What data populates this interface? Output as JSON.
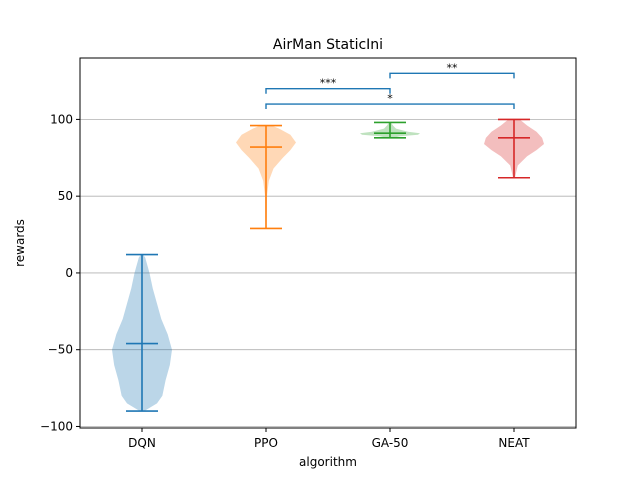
{
  "chart_data": {
    "type": "violin",
    "title": "AirMan StaticIni",
    "xlabel": "algorithm",
    "ylabel": "rewards",
    "ylim": [
      -101,
      140
    ],
    "yticks": [
      -100,
      -50,
      0,
      50,
      100
    ],
    "grid": "horizontal",
    "categories": [
      "DQN",
      "PPO",
      "GA-50",
      "NEAT"
    ],
    "series": [
      {
        "name": "DQN",
        "color": "#1f77b4",
        "fill": "#1f77b4",
        "min": -90,
        "max": 12,
        "mean": -46,
        "density": [
          [
            -90,
            2
          ],
          [
            -85,
            14
          ],
          [
            -80,
            19
          ],
          [
            -70,
            22
          ],
          [
            -60,
            26
          ],
          [
            -50,
            28
          ],
          [
            -40,
            24
          ],
          [
            -30,
            18
          ],
          [
            -20,
            14
          ],
          [
            -10,
            10
          ],
          [
            0,
            7
          ],
          [
            10,
            3
          ],
          [
            12,
            1
          ]
        ]
      },
      {
        "name": "PPO",
        "color": "#ff7f0e",
        "fill": "#ff7f0e",
        "min": 29,
        "max": 96,
        "mean": 82,
        "density": [
          [
            29,
            0.5
          ],
          [
            50,
            1
          ],
          [
            60,
            3
          ],
          [
            68,
            8
          ],
          [
            75,
            18
          ],
          [
            80,
            26
          ],
          [
            85,
            32
          ],
          [
            90,
            26
          ],
          [
            94,
            14
          ],
          [
            96,
            6
          ]
        ]
      },
      {
        "name": "GA-50",
        "color": "#2ca02c",
        "fill": "#2ca02c",
        "min": 88,
        "max": 98,
        "mean": 91,
        "density": [
          [
            88,
            3
          ],
          [
            89,
            10
          ],
          [
            90,
            28
          ],
          [
            91,
            30
          ],
          [
            92,
            18
          ],
          [
            94,
            6
          ],
          [
            96,
            3
          ],
          [
            98,
            1
          ]
        ]
      },
      {
        "name": "NEAT",
        "color": "#d62728",
        "fill": "#d62728",
        "min": 62,
        "max": 100,
        "mean": 88,
        "density": [
          [
            62,
            1
          ],
          [
            70,
            4
          ],
          [
            76,
            14
          ],
          [
            80,
            24
          ],
          [
            84,
            32
          ],
          [
            88,
            30
          ],
          [
            92,
            24
          ],
          [
            96,
            14
          ],
          [
            100,
            6
          ]
        ]
      }
    ],
    "significance": [
      {
        "from": 1,
        "to": 2,
        "y": 120,
        "label": "***"
      },
      {
        "from": 1,
        "to": 3,
        "y": 110,
        "label": "*"
      },
      {
        "from": 2,
        "to": 3,
        "y": 130,
        "label": "**"
      }
    ]
  }
}
